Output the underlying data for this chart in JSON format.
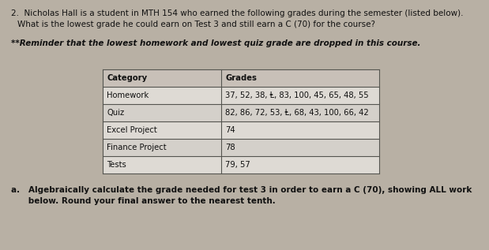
{
  "line1": "2.  Nicholas Hall is a student in MTH 154 who earned the following grades during the semester (listed below).",
  "line2": "What is the lowest grade he could earn on Test 3 and still earn a C (70) for the course?",
  "reminder": "**Reminder that the lowest homework and lowest quiz grade are dropped in this course.",
  "table_headers": [
    "Category",
    "Grades"
  ],
  "table_rows": [
    [
      "Homework",
      "37, 52, 38, Ⱡ, 83, 100, 45, 65, 48, 55"
    ],
    [
      "Quiz",
      "82, 86, 72, 53, Ⱡ, 68, 43, 100, 66, 42"
    ],
    [
      "Excel Project",
      "74"
    ],
    [
      "Finance Project",
      "78"
    ],
    [
      "Tests",
      "79, 57"
    ]
  ],
  "hw_grades": "37, 52, 38, A̅, 83, 100, 45, 65, 48, 55",
  "quiz_grades": "82, 86, 72, 53, A̅, 68, 43, 100, 66, 42",
  "footer_a": "a.   Algebraically calculate the grade needed for test 3 in order to earn a C (70), showing ALL work",
  "footer_b": "      below. Round your final answer to the nearest tenth.",
  "bg_color": "#b8b0a4",
  "table_bg_white": "#e8e4de",
  "table_header_bg": "#d0c8c0",
  "border_color": "#555550",
  "text_color": "#111111"
}
